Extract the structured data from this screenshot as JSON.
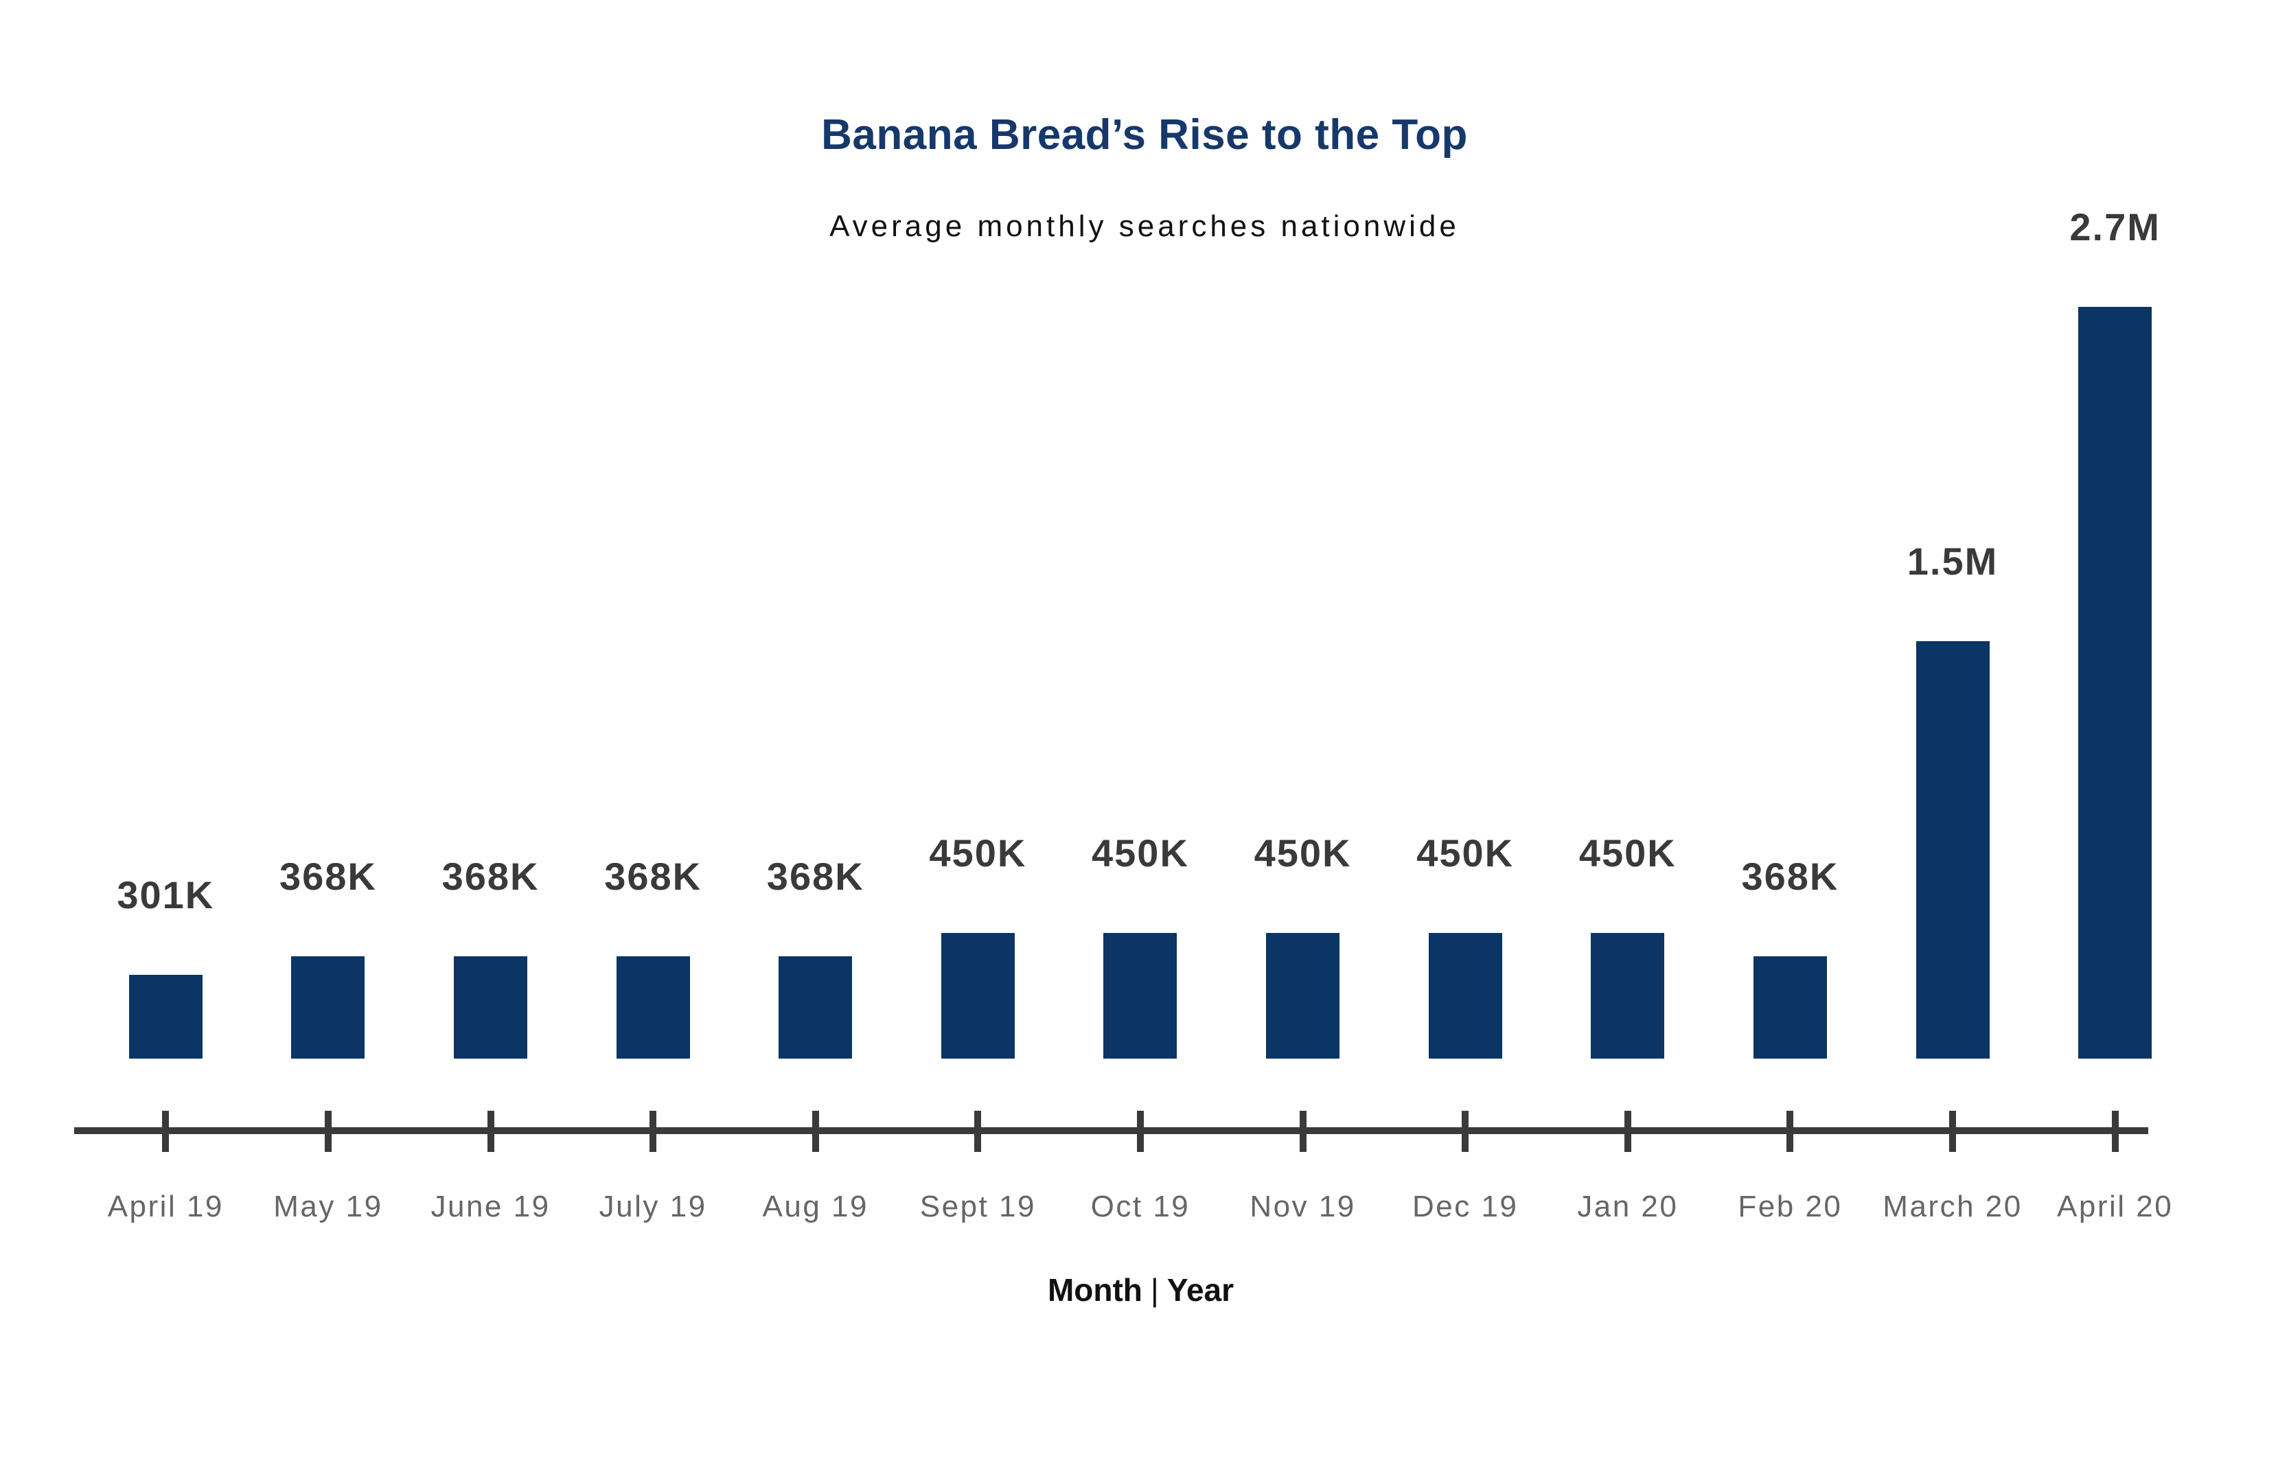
{
  "page": {
    "background": "#ffffff"
  },
  "header": {
    "title": "Banana Bread’s Rise to the Top",
    "subtitle": "Average monthly searches nationwide"
  },
  "xaxis": {
    "month_word": "Month",
    "separator": "|",
    "year_word": "Year"
  },
  "colors": {
    "bar": "#0a3564",
    "title": "#16386b",
    "subtitle": "#111111",
    "value_label": "#3a3a3a",
    "axis": "#3a3a3a",
    "tick_label": "#666666"
  },
  "chart_data": {
    "type": "bar",
    "title": "Banana Bread’s Rise to the Top",
    "subtitle": "Average monthly searches nationwide",
    "xlabel": "Month | Year",
    "ylabel": "",
    "grid": false,
    "legend": false,
    "ylim": [
      0,
      2700000
    ],
    "categories": [
      "April 19",
      "May 19",
      "June 19",
      "July 19",
      "Aug 19",
      "Sept 19",
      "Oct 19",
      "Nov 19",
      "Dec 19",
      "Jan 20",
      "Feb 20",
      "March 20",
      "April 20"
    ],
    "values": [
      301000,
      368000,
      368000,
      368000,
      368000,
      450000,
      450000,
      450000,
      450000,
      450000,
      368000,
      1500000,
      2700000
    ],
    "value_labels": [
      "301K",
      "368K",
      "368K",
      "368K",
      "368K",
      "450K",
      "450K",
      "450K",
      "450K",
      "450K",
      "368K",
      "1.5M",
      "2.7M"
    ]
  }
}
